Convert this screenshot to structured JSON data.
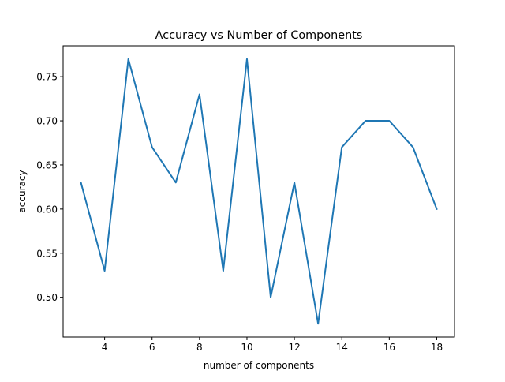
{
  "chart_data": {
    "type": "line",
    "title": "Accuracy vs Number of Components",
    "xlabel": "number of components",
    "ylabel": "accuracy",
    "xlim": [
      2.25,
      18.75
    ],
    "ylim": [
      0.455,
      0.785
    ],
    "x_ticks": [
      4,
      6,
      8,
      10,
      12,
      14,
      16,
      18
    ],
    "y_ticks": [
      0.5,
      0.55,
      0.6,
      0.65,
      0.7,
      0.75
    ],
    "grid": false,
    "legend": "none",
    "series": [
      {
        "color": "#1f77b4",
        "x": [
          3,
          4,
          5,
          6,
          7,
          8,
          9,
          10,
          11,
          12,
          13,
          14,
          15,
          16,
          17,
          18
        ],
        "y": [
          0.63,
          0.53,
          0.77,
          0.67,
          0.63,
          0.73,
          0.53,
          0.77,
          0.5,
          0.63,
          0.47,
          0.67,
          0.7,
          0.7,
          0.67,
          0.6
        ]
      }
    ]
  }
}
